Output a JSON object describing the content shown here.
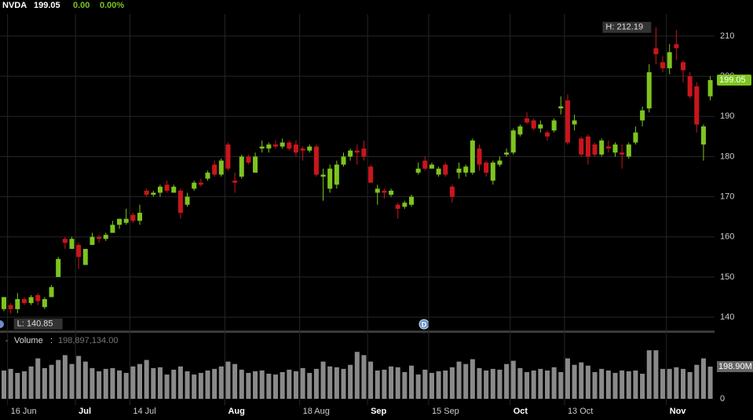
{
  "header": {
    "symbol": "NVDA",
    "last": "199.05",
    "change": "0.00",
    "change_pct": "0.00%"
  },
  "chart_data": {
    "type": "candlestick",
    "x": [
      null,
      "16 Jun",
      null,
      null,
      null,
      null,
      null,
      null,
      null,
      null,
      null,
      "Jul",
      null,
      null,
      null,
      null,
      null,
      null,
      null,
      "14 Jul",
      null,
      null,
      null,
      null,
      null,
      null,
      null,
      null,
      null,
      null,
      null,
      null,
      null,
      "Aug",
      null,
      null,
      null,
      null,
      null,
      null,
      null,
      null,
      null,
      null,
      "18 Aug",
      null,
      null,
      null,
      null,
      null,
      null,
      null,
      null,
      null,
      "Sep",
      null,
      null,
      null,
      null,
      null,
      null,
      null,
      null,
      "15 Sep",
      null,
      null,
      null,
      null,
      null,
      null,
      null,
      null,
      null,
      null,
      null,
      "Oct",
      null,
      null,
      null,
      null,
      null,
      null,
      null,
      "13 Oct",
      null,
      null,
      null,
      null,
      null,
      null,
      null,
      null,
      null,
      null,
      null,
      null,
      null,
      null,
      "Nov",
      null,
      null,
      null,
      null,
      null,
      null
    ],
    "open": [
      142,
      143,
      142,
      144.5,
      143.5,
      145.5,
      142.5,
      145,
      150,
      159.5,
      157,
      158,
      153,
      158,
      160,
      159.5,
      161,
      163,
      163.5,
      165.5,
      164,
      171.5,
      170.5,
      171,
      173,
      171,
      171.5,
      168,
      172,
      173.5,
      174.5,
      178,
      175.5,
      183,
      174,
      175,
      180,
      176,
      182,
      182,
      183,
      182.5,
      183.5,
      183,
      182,
      181.5,
      182.5,
      175,
      172,
      173,
      178,
      180,
      181.5,
      182,
      177.5,
      171,
      171.5,
      170.5,
      168,
      167.5,
      168,
      176,
      179,
      177,
      175.5,
      178,
      172.5,
      176,
      176,
      176,
      182,
      178.5,
      174,
      178,
      180.5,
      181,
      185.5,
      189.5,
      189,
      187,
      186,
      186.5,
      192,
      194,
      188,
      184.5,
      185,
      183,
      180.5,
      182.5,
      181,
      181,
      180,
      183.5,
      189,
      192,
      207,
      203.5,
      202,
      208,
      203.5,
      200,
      197.5,
      183,
      195
    ],
    "high": [
      145,
      143.5,
      146,
      145,
      145.5,
      146,
      145,
      148,
      155,
      160,
      160,
      158.5,
      157,
      161,
      160.5,
      161,
      164,
      164.5,
      167,
      166,
      168,
      172,
      171.5,
      173,
      174,
      173,
      172,
      171,
      174,
      174.5,
      176.5,
      179,
      179.5,
      183.5,
      176,
      180.5,
      180.5,
      181,
      184,
      183.5,
      184,
      184.5,
      184,
      184,
      182.5,
      183,
      183,
      177,
      178,
      179,
      181,
      182,
      183,
      184,
      178,
      173,
      172,
      172,
      168.5,
      169,
      170.5,
      178.5,
      180,
      178.5,
      177.5,
      178.5,
      173,
      178.5,
      178,
      184.5,
      183,
      179,
      179,
      180,
      182,
      187,
      188,
      191,
      189.5,
      189,
      186.5,
      189.5,
      195,
      195.5,
      190.5,
      185,
      185.5,
      183.5,
      184.5,
      184,
      183.5,
      183,
      183.5,
      187.5,
      192.5,
      203,
      212.19,
      205,
      208,
      211.5,
      204,
      201,
      198.5,
      188,
      200
    ],
    "low": [
      141.5,
      140.85,
      141,
      143,
      143,
      143,
      142,
      145,
      150,
      157,
      157,
      152,
      153,
      158,
      158.5,
      159,
      161,
      162,
      163,
      163.5,
      163,
      170,
      170,
      170,
      171,
      171,
      164.5,
      167.5,
      171.5,
      172.5,
      174,
      175,
      175,
      176.5,
      171,
      174.5,
      178,
      176,
      181,
      181,
      182,
      182,
      181.5,
      180,
      179,
      181,
      175,
      169,
      171,
      172,
      177.5,
      179,
      178,
      179,
      173.5,
      168,
      169.5,
      170,
      164.5,
      167,
      167.5,
      175.5,
      176.5,
      177,
      175,
      175,
      168.5,
      174.5,
      175,
      175.5,
      176.5,
      175,
      173,
      177.5,
      180,
      180.5,
      185,
      188,
      186.5,
      186,
      184,
      186,
      190.5,
      183,
      186.5,
      180,
      178,
      180,
      180,
      181,
      180,
      177,
      179.5,
      183,
      187.5,
      191,
      203,
      201,
      200.5,
      204,
      198.5,
      194.5,
      186,
      179,
      194
    ],
    "close": [
      145,
      142,
      144.5,
      143.5,
      145,
      144,
      144.5,
      147.5,
      154.5,
      158.5,
      159.5,
      155,
      157,
      160,
      159.5,
      160.5,
      163,
      164.5,
      164.5,
      164,
      166,
      170.5,
      171,
      172.5,
      171.5,
      172.5,
      166,
      170,
      173.5,
      173,
      176,
      175.5,
      179,
      177,
      173.5,
      180,
      178.5,
      180,
      182.5,
      183,
      182.5,
      183.5,
      182,
      181,
      181.5,
      182.5,
      175.5,
      175.5,
      177,
      178,
      180,
      181.5,
      181,
      180,
      173.5,
      172,
      171,
      171.5,
      167,
      168.5,
      170,
      177,
      177,
      178,
      177,
      175.5,
      170,
      177,
      177.5,
      184,
      178,
      176,
      178.5,
      179,
      181,
      186.5,
      187.5,
      188.5,
      187,
      188,
      185,
      189,
      192.5,
      183.5,
      189,
      180.5,
      180,
      180.5,
      184,
      182,
      183,
      180.5,
      183,
      186,
      191.5,
      201,
      205.5,
      202,
      206,
      207,
      201.5,
      195,
      188,
      187.5,
      199.05
    ],
    "up_color": "#7ec41f",
    "down_color": "#c9161c",
    "ylim": [
      136.87,
      215.48
    ],
    "yticks": [
      140,
      150,
      160,
      170,
      180,
      190,
      200,
      210
    ],
    "grid": true,
    "high_label": "H: 212.19",
    "low_label": "L: 140.85",
    "volume": {
      "title": "Volume",
      "legend_value": "198,897,134.00",
      "color": "#8a8a8a",
      "values": [
        175000000,
        185000000,
        160000000,
        170000000,
        200000000,
        250000000,
        190000000,
        210000000,
        240000000,
        270000000,
        215000000,
        265000000,
        230000000,
        190000000,
        170000000,
        185000000,
        190000000,
        175000000,
        160000000,
        200000000,
        215000000,
        240000000,
        190000000,
        195000000,
        150000000,
        180000000,
        200000000,
        170000000,
        150000000,
        160000000,
        175000000,
        185000000,
        200000000,
        230000000,
        215000000,
        180000000,
        160000000,
        170000000,
        175000000,
        155000000,
        150000000,
        165000000,
        180000000,
        170000000,
        190000000,
        160000000,
        185000000,
        230000000,
        200000000,
        195000000,
        185000000,
        210000000,
        290000000,
        270000000,
        230000000,
        175000000,
        180000000,
        200000000,
        195000000,
        165000000,
        205000000,
        150000000,
        180000000,
        160000000,
        170000000,
        175000000,
        195000000,
        230000000,
        215000000,
        245000000,
        190000000,
        175000000,
        185000000,
        180000000,
        215000000,
        235000000,
        190000000,
        165000000,
        175000000,
        185000000,
        175000000,
        195000000,
        165000000,
        250000000,
        210000000,
        225000000,
        205000000,
        165000000,
        185000000,
        175000000,
        160000000,
        175000000,
        170000000,
        175000000,
        155000000,
        300000000,
        300000000,
        185000000,
        185000000,
        195000000,
        185000000,
        165000000,
        210000000,
        250000000,
        198897134
      ],
      "value_labels": [
        null,
        null,
        null,
        null,
        null,
        null,
        null,
        null,
        null,
        null,
        null,
        null,
        null,
        null,
        null,
        null,
        null,
        null,
        null,
        null,
        null,
        null,
        null,
        null,
        null,
        null,
        null,
        null,
        null,
        null,
        null,
        null,
        null,
        null,
        null,
        null,
        null,
        null,
        null,
        null,
        null,
        null,
        null,
        null,
        null,
        null,
        null,
        null,
        null,
        null,
        null,
        null,
        null,
        null,
        null,
        null,
        null,
        null,
        null,
        null,
        null,
        null,
        null,
        null,
        null,
        null,
        null,
        null,
        null,
        null,
        null,
        null,
        null,
        null,
        null,
        null,
        null,
        null,
        null,
        null,
        null,
        null,
        null,
        null,
        null,
        null,
        null,
        null,
        null,
        null,
        null,
        null,
        null,
        null,
        null,
        null,
        null,
        null,
        null,
        null,
        null,
        null,
        null,
        null,
        "198.90M"
      ],
      "ylim": [
        0,
        330000000
      ],
      "yticks": [
        0
      ]
    }
  }
}
